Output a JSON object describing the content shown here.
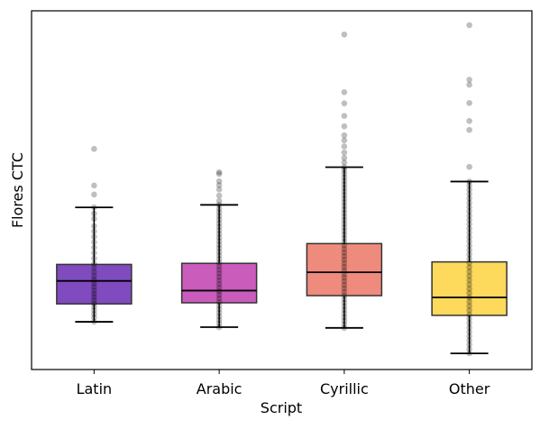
{
  "chart_data": {
    "type": "box",
    "xlabel": "Script",
    "ylabel": "Flores CTC",
    "ylim": [
      0,
      100
    ],
    "categories": [
      "Latin",
      "Arabic",
      "Cyrillic",
      "Other"
    ],
    "colors": [
      "#6a2bb4",
      "#c13fb0",
      "#ec7766",
      "#fdd23f"
    ],
    "boxes": [
      {
        "name": "Latin",
        "whisker_low": 13.3,
        "q1": 18.3,
        "median": 24.7,
        "q3": 29.3,
        "whisker_high": 45.2,
        "points": [
          13.3,
          14.5,
          15.5,
          16.5,
          17.5,
          18.4,
          19.3,
          20.2,
          21.1,
          22.0,
          23.0,
          24.0,
          25.0,
          26.0,
          27.2,
          28.4,
          29.5,
          31.0,
          32.5,
          34.0,
          35.5,
          37.0,
          38.5,
          40.0,
          42.0,
          43.5,
          45.2,
          48.8,
          51.3,
          61.5
        ]
      },
      {
        "name": "Arabic",
        "whisker_low": 11.8,
        "q1": 18.6,
        "median": 22.0,
        "q3": 29.6,
        "whisker_high": 45.9,
        "points": [
          11.8,
          12.8,
          13.8,
          14.8,
          15.8,
          16.8,
          17.8,
          18.8,
          19.8,
          20.8,
          21.8,
          22.8,
          23.8,
          24.8,
          25.8,
          26.8,
          27.8,
          28.8,
          29.8,
          30.8,
          31.8,
          32.8,
          33.8,
          34.8,
          35.8,
          36.8,
          37.8,
          38.8,
          39.8,
          40.8,
          41.8,
          42.8,
          43.8,
          44.8,
          45.9,
          47.0,
          48.5,
          50.2,
          51.4,
          52.5,
          54.5,
          55.0
        ]
      },
      {
        "name": "Cyrillic",
        "whisker_low": 11.6,
        "q1": 20.6,
        "median": 27.1,
        "q3": 35.1,
        "whisker_high": 56.4,
        "points": [
          11.6,
          12.6,
          13.6,
          14.6,
          15.6,
          16.6,
          17.6,
          18.6,
          19.6,
          20.6,
          21.6,
          22.6,
          23.6,
          24.6,
          25.6,
          26.6,
          27.6,
          28.6,
          29.6,
          30.6,
          31.6,
          32.6,
          33.6,
          34.6,
          35.6,
          36.6,
          37.6,
          38.6,
          39.6,
          40.6,
          41.6,
          42.6,
          43.6,
          44.6,
          45.6,
          46.6,
          47.6,
          48.6,
          49.6,
          50.6,
          51.6,
          52.6,
          53.6,
          54.6,
          55.6,
          56.4,
          57.7,
          59.0,
          60.5,
          62.2,
          63.9,
          65.3,
          67.8,
          70.7,
          74.2,
          77.3,
          93.4
        ]
      },
      {
        "name": "Other",
        "whisker_low": 4.5,
        "q1": 15.1,
        "median": 20.1,
        "q3": 30.0,
        "whisker_high": 52.4,
        "points": [
          4.5,
          5.7,
          6.9,
          8.1,
          9.3,
          10.5,
          11.7,
          12.9,
          14.1,
          15.3,
          16.5,
          17.7,
          18.9,
          20.1,
          21.3,
          22.5,
          23.7,
          24.9,
          26.1,
          27.3,
          28.5,
          29.7,
          30.9,
          32.1,
          33.3,
          34.5,
          35.7,
          36.9,
          38.1,
          39.3,
          40.5,
          41.7,
          42.9,
          44.1,
          45.3,
          46.5,
          47.7,
          48.9,
          50.1,
          51.3,
          52.4,
          56.5,
          66.8,
          69.3,
          74.3,
          79.4,
          80.8,
          96.0
        ]
      }
    ]
  }
}
